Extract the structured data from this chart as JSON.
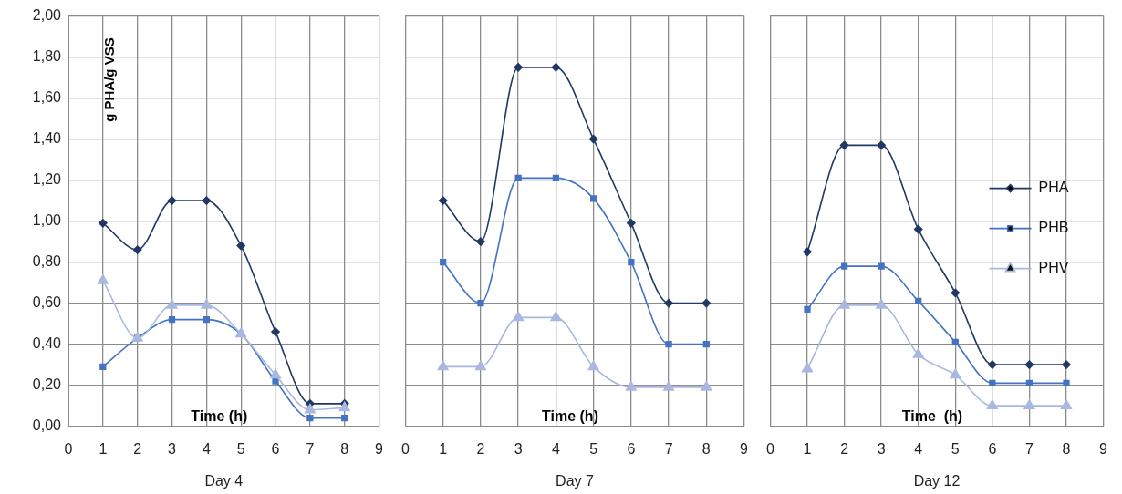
{
  "chart_data": [
    {
      "type": "line",
      "xlabel": "Day 4",
      "ylabel": "g PHA/g VSS",
      "annotations": [
        "Time (h)"
      ],
      "x": [
        1,
        2,
        3,
        4,
        5,
        6,
        7,
        8
      ],
      "series": [
        {
          "color": "#203864",
          "marker": "diamond",
          "values": [
            0.99,
            0.86,
            1.1,
            1.1,
            0.88,
            0.46,
            0.11,
            0.11
          ]
        },
        {
          "color": "#4472c4",
          "marker": "square",
          "values": [
            0.29,
            0.43,
            0.52,
            0.52,
            0.45,
            0.22,
            0.04,
            0.04
          ]
        },
        {
          "color": "#a9b8e0",
          "marker": "triangle",
          "values": [
            0.71,
            0.43,
            0.59,
            0.59,
            0.45,
            0.25,
            0.08,
            0.09
          ]
        }
      ],
      "xlim": [
        0,
        9
      ],
      "xticks": [
        0,
        1,
        2,
        3,
        4,
        5,
        6,
        7,
        8,
        9
      ],
      "ylim": [
        0,
        2
      ],
      "yticks": [
        {
          "value": 0,
          "label": "0,00"
        },
        {
          "value": 0.2,
          "label": "0,20"
        },
        {
          "value": 0.4,
          "label": "0,40"
        },
        {
          "value": 0.6,
          "label": "0,60"
        },
        {
          "value": 0.8,
          "label": "0,80"
        },
        {
          "value": 1,
          "label": "1,00"
        },
        {
          "value": 1.2,
          "label": "1,20"
        },
        {
          "value": 1.4,
          "label": "1,40"
        },
        {
          "value": 1.6,
          "label": "1,60"
        },
        {
          "value": 1.8,
          "label": "1,80"
        },
        {
          "value": 2,
          "label": "2,00"
        }
      ],
      "grid": true,
      "legend": false
    },
    {
      "type": "line",
      "xlabel": "Day 7",
      "annotations": [
        "Time (h)"
      ],
      "x": [
        1,
        2,
        3,
        4,
        5,
        6,
        7,
        8
      ],
      "series": [
        {
          "color": "#203864",
          "marker": "diamond",
          "values": [
            1.1,
            0.9,
            1.75,
            1.75,
            1.4,
            0.99,
            0.6,
            0.6
          ]
        },
        {
          "color": "#4472c4",
          "marker": "square",
          "values": [
            0.8,
            0.6,
            1.21,
            1.21,
            1.11,
            0.8,
            0.4,
            0.4
          ]
        },
        {
          "color": "#a9b8e0",
          "marker": "triangle",
          "values": [
            0.29,
            0.29,
            0.53,
            0.53,
            0.29,
            0.19,
            0.19,
            0.19
          ]
        }
      ],
      "xlim": [
        0,
        9
      ],
      "xticks": [
        0,
        1,
        2,
        3,
        4,
        5,
        6,
        7,
        8,
        9
      ],
      "ylim": [
        0,
        2
      ],
      "yticks": [
        0,
        0.2,
        0.4,
        0.6,
        0.8,
        1,
        1.2,
        1.4,
        1.6,
        1.8,
        2
      ],
      "grid": true,
      "legend": false,
      "tick_labels": "x"
    },
    {
      "type": "line",
      "xlabel": "Day 12",
      "annotations": [
        "Time  (h)"
      ],
      "x": [
        1,
        2,
        3,
        4,
        5,
        6,
        7,
        8
      ],
      "series": [
        {
          "name": "PHA",
          "color": "#203864",
          "marker": "diamond",
          "values": [
            0.85,
            1.37,
            1.37,
            0.96,
            0.65,
            0.3,
            0.3,
            0.3
          ]
        },
        {
          "name": "PHB",
          "color": "#4472c4",
          "marker": "square",
          "values": [
            0.57,
            0.78,
            0.78,
            0.61,
            0.41,
            0.21,
            0.21,
            0.21
          ]
        },
        {
          "name": "PHV",
          "color": "#a9b8e0",
          "marker": "triangle",
          "values": [
            0.28,
            0.59,
            0.59,
            0.35,
            0.25,
            0.1,
            0.1,
            0.1
          ]
        }
      ],
      "xlim": [
        0,
        9
      ],
      "xticks": [
        0,
        1,
        2,
        3,
        4,
        5,
        6,
        7,
        8,
        9
      ],
      "ylim": [
        0,
        2
      ],
      "yticks": [
        0,
        0.2,
        0.4,
        0.6,
        0.8,
        1,
        1.2,
        1.4,
        1.6,
        1.8,
        2
      ],
      "grid": true,
      "legend": "right",
      "tick_labels": "x"
    }
  ]
}
